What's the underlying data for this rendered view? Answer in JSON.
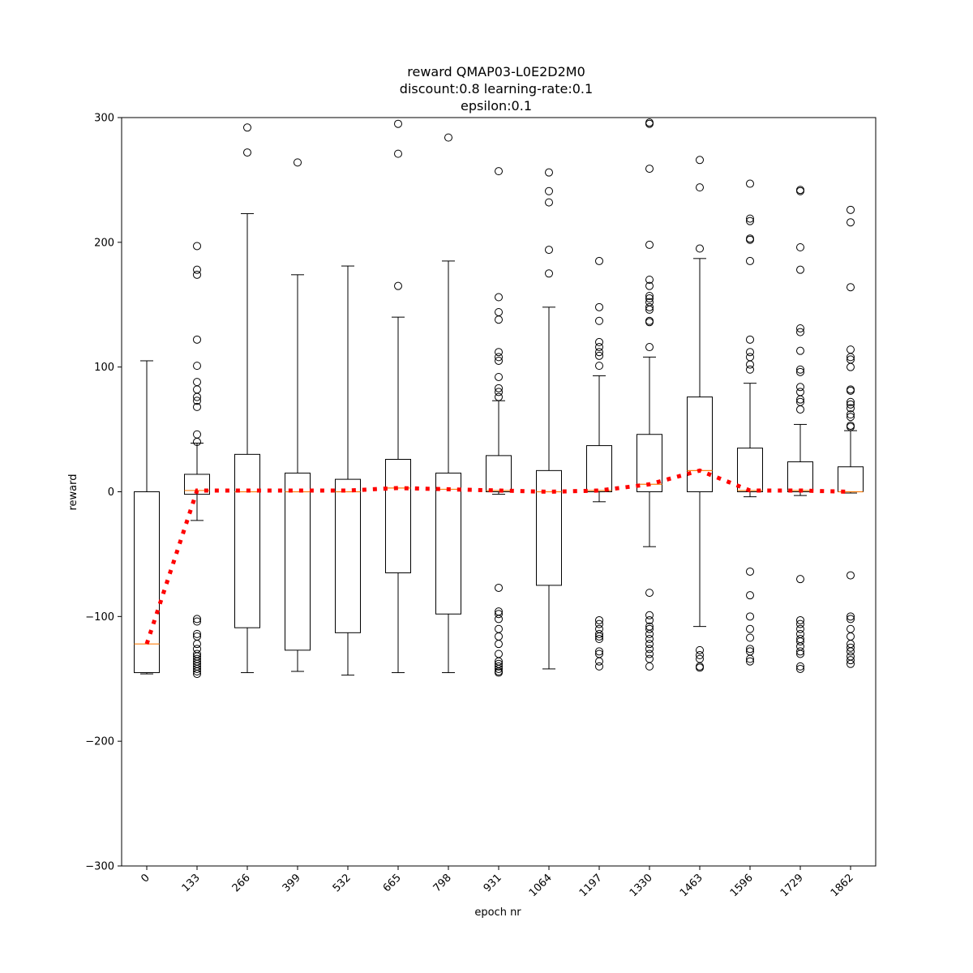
{
  "chart_data": {
    "type": "box",
    "title_lines": [
      "reward QMAP03-L0E2D2M0",
      "discount:0.8 learning-rate:0.1",
      "epsilon:0.1"
    ],
    "xlabel": "epoch nr",
    "ylabel": "reward",
    "ylim": [
      -300,
      300
    ],
    "yticks": [
      -300,
      -200,
      -100,
      0,
      100,
      200,
      300
    ],
    "yticks_display": [
      "−300",
      "−200",
      "−100",
      "0",
      "100",
      "200",
      "300"
    ],
    "categories": [
      "0",
      "133",
      "266",
      "399",
      "532",
      "665",
      "798",
      "931",
      "1064",
      "1197",
      "1330",
      "1463",
      "1596",
      "1729",
      "1862"
    ],
    "colors": {
      "box": "#000000",
      "median": "#ff7f0e",
      "trend": "#ff0000"
    },
    "boxes": [
      {
        "q1": -145,
        "median": -122,
        "q3": 0,
        "whislo": -146,
        "whishi": 105,
        "fliers": []
      },
      {
        "q1": -2,
        "median": 1,
        "q3": 14,
        "whislo": -23,
        "whishi": 39,
        "fliers": [
          197,
          178,
          174,
          122,
          101,
          88,
          82,
          76,
          73,
          68,
          46,
          40,
          -102,
          -104,
          -114,
          -116,
          -122,
          -126,
          -130,
          -132,
          -134,
          -136,
          -138,
          -140,
          -142,
          -144,
          -146
        ]
      },
      {
        "q1": -109,
        "median": 0,
        "q3": 30,
        "whislo": -145,
        "whishi": 223,
        "fliers": [
          292,
          272
        ]
      },
      {
        "q1": -127,
        "median": 0,
        "q3": 15,
        "whislo": -144,
        "whishi": 174,
        "fliers": [
          264
        ]
      },
      {
        "q1": -113,
        "median": 0,
        "q3": 10,
        "whislo": -147,
        "whishi": 181,
        "fliers": []
      },
      {
        "q1": -65,
        "median": 3,
        "q3": 26,
        "whislo": -145,
        "whishi": 140,
        "fliers": [
          295,
          271,
          165
        ]
      },
      {
        "q1": -98,
        "median": 2,
        "q3": 15,
        "whislo": -145,
        "whishi": 185,
        "fliers": [
          284
        ]
      },
      {
        "q1": 0,
        "median": 1,
        "q3": 29,
        "whislo": -2,
        "whishi": 73,
        "fliers": [
          257,
          156,
          144,
          138,
          112,
          108,
          105,
          92,
          83,
          80,
          76,
          -77,
          -96,
          -98,
          -102,
          -110,
          -116,
          -122,
          -130,
          -136,
          -138,
          -140,
          -142,
          -144,
          -145
        ]
      },
      {
        "q1": -75,
        "median": 0,
        "q3": 17,
        "whislo": -142,
        "whishi": 148,
        "fliers": [
          256,
          241,
          232,
          194,
          175
        ]
      },
      {
        "q1": 0,
        "median": 1,
        "q3": 37,
        "whislo": -8,
        "whishi": 93,
        "fliers": [
          185,
          148,
          137,
          120,
          116,
          112,
          109,
          101,
          -103,
          -106,
          -110,
          -114,
          -116,
          -118,
          -128,
          -130,
          -136,
          -140
        ]
      },
      {
        "q1": 0,
        "median": 6,
        "q3": 46,
        "whislo": -44,
        "whishi": 108,
        "fliers": [
          296,
          295,
          259,
          198,
          170,
          165,
          157,
          155,
          152,
          148,
          146,
          137,
          136,
          116,
          -81,
          -99,
          -103,
          -108,
          -110,
          -114,
          -118,
          -122,
          -126,
          -130,
          -134,
          -140
        ]
      },
      {
        "q1": 0,
        "median": 17,
        "q3": 76,
        "whislo": -108,
        "whishi": 187,
        "fliers": [
          266,
          244,
          195,
          -127,
          -131,
          -134,
          -140,
          -141
        ]
      },
      {
        "q1": 0,
        "median": 1,
        "q3": 35,
        "whislo": -4,
        "whishi": 87,
        "fliers": [
          247,
          219,
          217,
          203,
          202,
          185,
          122,
          112,
          108,
          102,
          98,
          -64,
          -83,
          -100,
          -110,
          -117,
          -126,
          -128,
          -134,
          -136
        ]
      },
      {
        "q1": 0,
        "median": 1,
        "q3": 24,
        "whislo": -3,
        "whishi": 54,
        "fliers": [
          242,
          241,
          196,
          178,
          131,
          128,
          113,
          98,
          96,
          84,
          80,
          74,
          72,
          66,
          -70,
          -103,
          -106,
          -110,
          -114,
          -118,
          -120,
          -124,
          -128,
          -130,
          -140,
          -142
        ]
      },
      {
        "q1": 0,
        "median": 0,
        "q3": 20,
        "whislo": -1,
        "whishi": 49,
        "fliers": [
          226,
          216,
          164,
          114,
          108,
          106,
          100,
          82,
          81,
          72,
          70,
          67,
          62,
          60,
          53,
          52,
          -67,
          -100,
          -102,
          -110,
          -116,
          -122,
          -125,
          -128,
          -132,
          -135,
          -138
        ]
      }
    ],
    "trend_line": {
      "style": "dotted",
      "values": [
        -122,
        1,
        1,
        1,
        1,
        3,
        2,
        1,
        0,
        1,
        6,
        17,
        1,
        1,
        0
      ]
    }
  }
}
